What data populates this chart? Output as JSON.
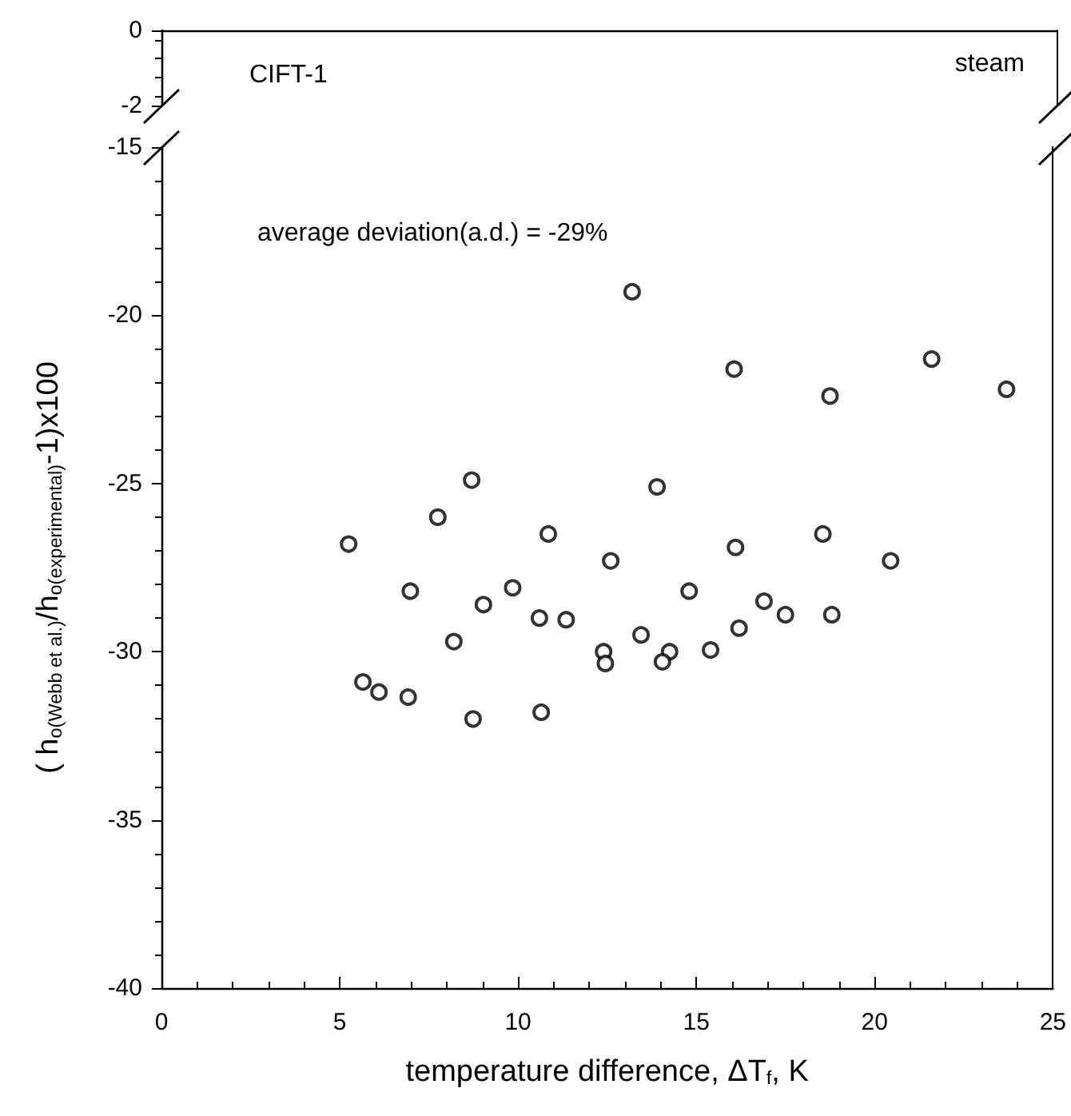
{
  "chart_data": [
    {
      "type": "scatter",
      "xlim": [
        0,
        25
      ],
      "ylim": [
        -2,
        0
      ],
      "yticks": [
        0,
        -2
      ],
      "tick_labels": "y",
      "annotations": [
        "CIFT-1",
        "steam"
      ]
    },
    {
      "type": "scatter",
      "xlabel": "temperature difference, ΔT$_{f}$, K",
      "ylabel": "( h$_{o(Webb et al.)}$/h$_{o(experimental)}$-1)x100",
      "annotations": [
        "average deviation(a.d.) = -29%"
      ],
      "xlim": [
        0,
        25
      ],
      "ylim": [
        -40,
        -15
      ],
      "xticks": [
        0,
        5,
        10,
        15,
        20,
        25
      ],
      "yticks": [
        -15,
        -20,
        -25,
        -30,
        -35,
        -40
      ],
      "marker": "circle",
      "color": "#000000",
      "x": [
        13.2,
        16.06,
        21.6,
        18.75,
        23.7,
        13.9,
        10.85,
        12.6,
        16.1,
        18.55,
        20.45,
        14.8,
        16.9,
        17.5,
        18.8,
        10.6,
        11.35,
        13.45,
        16.2,
        12.4,
        12.45,
        14.25,
        14.05,
        15.4,
        10.65,
        8.7,
        7.75,
        5.25,
        6.98,
        9.85,
        9.03,
        8.2,
        5.65,
        6.1,
        6.92,
        8.74
      ],
      "values": [
        -19.3,
        -21.6,
        -21.3,
        -22.4,
        -22.2,
        -25.1,
        -26.5,
        -27.3,
        -26.9,
        -26.5,
        -27.3,
        -28.2,
        -28.5,
        -28.9,
        -28.9,
        -29.0,
        -29.05,
        -29.5,
        -29.3,
        -30.0,
        -30.35,
        -30.0,
        -30.3,
        -29.95,
        -31.8,
        -24.9,
        -26.0,
        -26.8,
        -28.2,
        -28.1,
        -28.6,
        -29.7,
        -30.9,
        -31.2,
        -31.35,
        -32.0
      ]
    }
  ]
}
